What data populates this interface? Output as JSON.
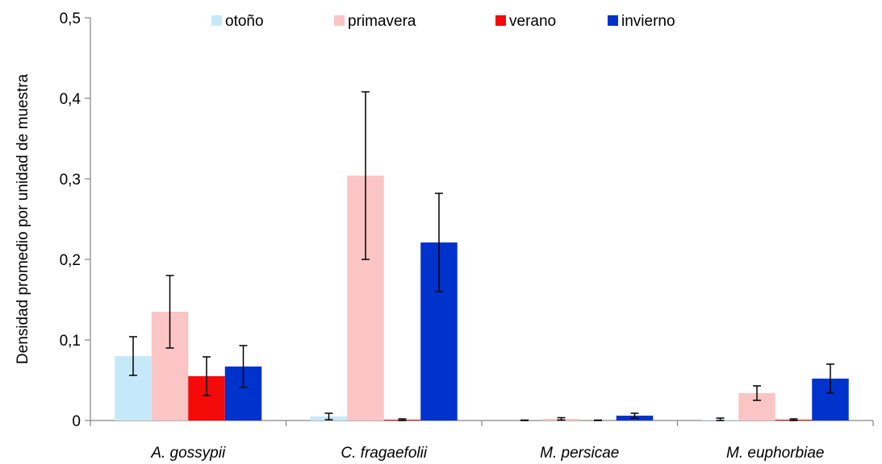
{
  "chart_data": {
    "type": "bar",
    "ylabel": "Densidad promedio por unidad de muestra",
    "ylim": [
      0,
      0.5
    ],
    "yticks": [
      0,
      0.1,
      0.2,
      0.3,
      0.4,
      0.5
    ],
    "ytick_labels": [
      "0",
      "0,1",
      "0,2",
      "0,3",
      "0,4",
      "0,5"
    ],
    "categories": [
      "A. gossypii",
      "C. fragaefolii",
      "M. persicae",
      "M. euphorbiae"
    ],
    "legend_position": "top",
    "error_bars": true,
    "series": [
      {
        "name": "otoño",
        "color": "#c6e9fa",
        "values": [
          0.08,
          0.005,
          0.0,
          0.001
        ],
        "errors": [
          0.024,
          0.004,
          0.0005,
          0.002
        ]
      },
      {
        "name": "primavera",
        "color": "#fcc5c5",
        "values": [
          0.135,
          0.304,
          0.002,
          0.034
        ],
        "errors": [
          0.045,
          0.104,
          0.0015,
          0.009
        ]
      },
      {
        "name": "verano",
        "color": "#f50a0a",
        "values": [
          0.055,
          0.001,
          0.0,
          0.001
        ],
        "errors": [
          0.024,
          0.001,
          0.0005,
          0.001
        ]
      },
      {
        "name": "invierno",
        "color": "#0033cc",
        "values": [
          0.067,
          0.221,
          0.006,
          0.052
        ],
        "errors": [
          0.026,
          0.061,
          0.003,
          0.018
        ]
      }
    ]
  }
}
